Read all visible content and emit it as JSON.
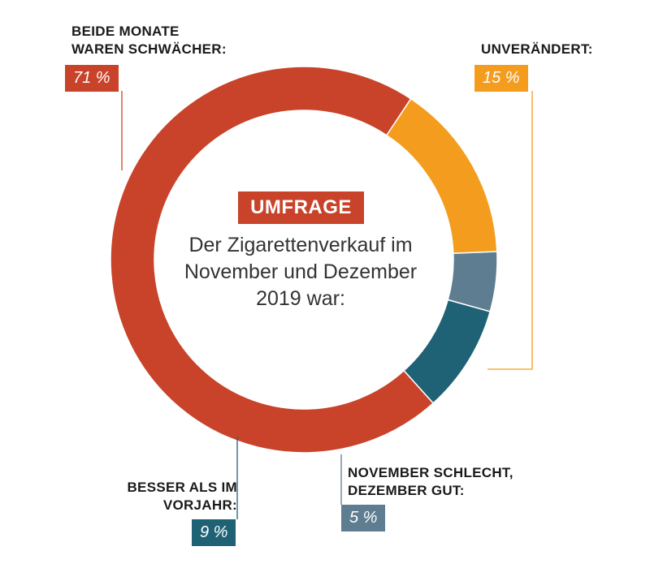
{
  "center": {
    "badge": "UMFRAGE",
    "question_lines": [
      "Der Zigarettenverkauf im",
      "November und Dezember",
      "2019 war:"
    ]
  },
  "chart_data": {
    "type": "pie",
    "donut": true,
    "slices": [
      {
        "key": "beide",
        "label_lines": [
          "BEIDE MONATE",
          "WAREN SCHWÄCHER:"
        ],
        "value": 71,
        "display": "71 %",
        "color": "#c8432a"
      },
      {
        "key": "unveraendert",
        "label_lines": [
          "UNVERÄNDERT:"
        ],
        "value": 15,
        "display": "15 %",
        "color": "#f39c1e"
      },
      {
        "key": "nov",
        "label_lines": [
          "NOVEMBER SCHLECHT,",
          "DEZEMBER GUT:"
        ],
        "value": 5,
        "display": "5 %",
        "color": "#5f7d91"
      },
      {
        "key": "besser",
        "label_lines": [
          "BESSER ALS IM",
          "VORJAHR:"
        ],
        "value": 9,
        "display": "9 %",
        "color": "#1f6275"
      }
    ]
  }
}
